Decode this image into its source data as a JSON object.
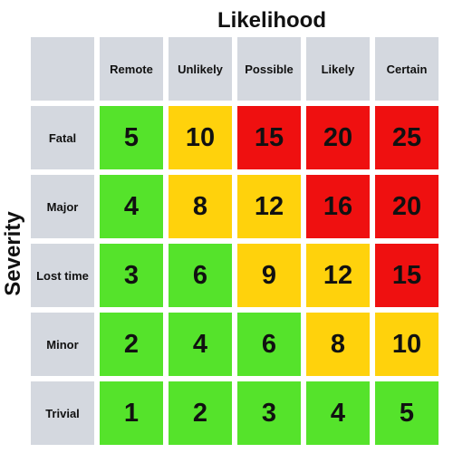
{
  "x_axis_title": "Likelihood",
  "y_axis_title": "Severity",
  "likelihood_levels": [
    "Remote",
    "Unlikely",
    "Possible",
    "Likely",
    "Certain"
  ],
  "severity_levels": [
    "Fatal",
    "Major",
    "Lost time",
    "Minor",
    "Trivial"
  ],
  "colors": {
    "low": "#55e32b",
    "medium": "#ffd20c",
    "high": "#ef1010",
    "header": "#d4d8df"
  },
  "matrix": [
    [
      {
        "value": "5",
        "level": "low"
      },
      {
        "value": "10",
        "level": "medium"
      },
      {
        "value": "15",
        "level": "high"
      },
      {
        "value": "20",
        "level": "high"
      },
      {
        "value": "25",
        "level": "high"
      }
    ],
    [
      {
        "value": "4",
        "level": "low"
      },
      {
        "value": "8",
        "level": "medium"
      },
      {
        "value": "12",
        "level": "medium"
      },
      {
        "value": "16",
        "level": "high"
      },
      {
        "value": "20",
        "level": "high"
      }
    ],
    [
      {
        "value": "3",
        "level": "low"
      },
      {
        "value": "6",
        "level": "low"
      },
      {
        "value": "9",
        "level": "medium"
      },
      {
        "value": "12",
        "level": "medium"
      },
      {
        "value": "15",
        "level": "high"
      }
    ],
    [
      {
        "value": "2",
        "level": "low"
      },
      {
        "value": "4",
        "level": "low"
      },
      {
        "value": "6",
        "level": "low"
      },
      {
        "value": "8",
        "level": "medium"
      },
      {
        "value": "10",
        "level": "medium"
      }
    ],
    [
      {
        "value": "1",
        "level": "low"
      },
      {
        "value": "2",
        "level": "low"
      },
      {
        "value": "3",
        "level": "low"
      },
      {
        "value": "4",
        "level": "low"
      },
      {
        "value": "5",
        "level": "low"
      }
    ]
  ]
}
